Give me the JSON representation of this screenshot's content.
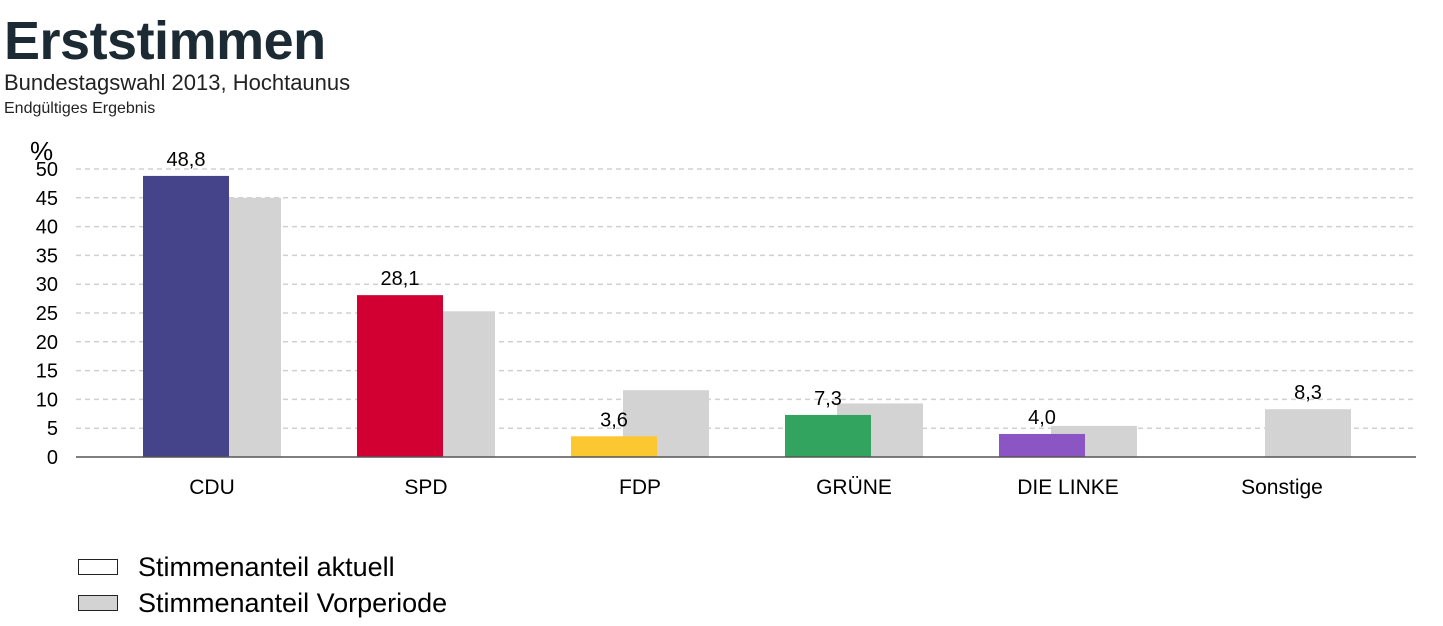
{
  "title": "Erststimmen",
  "subtitle": "Bundestagswahl 2013, Hochtaunus",
  "note": "Endgültiges Ergebnis",
  "legend": {
    "current_label": "Stimmenanteil aktuell",
    "previous_label": "Stimmenanteil Vorperiode"
  },
  "chart_data": {
    "type": "bar",
    "ylabel": "%",
    "ylim": [
      0,
      50
    ],
    "yticks": [
      0,
      5,
      10,
      15,
      20,
      25,
      30,
      35,
      40,
      45,
      50
    ],
    "grid": true,
    "legend_position": "bottom-left",
    "categories": [
      "CDU",
      "SPD",
      "FDP",
      "GRÜNE",
      "DIE LINKE",
      "Sonstige"
    ],
    "series": [
      {
        "name": "Stimmenanteil aktuell",
        "values": [
          48.8,
          28.1,
          3.6,
          7.3,
          4.0,
          null
        ],
        "labels": [
          "48,8",
          "28,1",
          "3,6",
          "7,3",
          "4,0",
          null
        ],
        "colors": [
          "#45448a",
          "#d20032",
          "#fcc831",
          "#33a45f",
          "#8b55c4",
          null
        ]
      },
      {
        "name": "Stimmenanteil Vorperiode",
        "values": [
          45.0,
          25.3,
          11.6,
          9.3,
          5.4,
          8.3
        ],
        "labels": [
          null,
          null,
          null,
          null,
          null,
          "8,3"
        ],
        "color": "#d3d3d3"
      }
    ]
  }
}
